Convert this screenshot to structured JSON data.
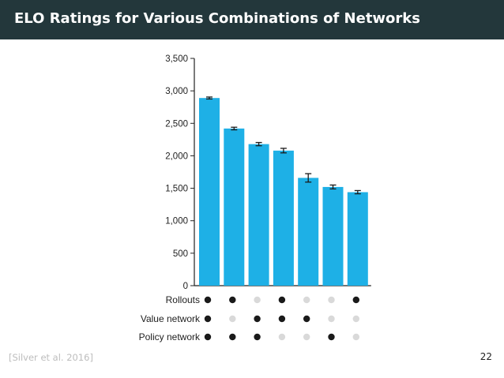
{
  "slide": {
    "title": "ELO Ratings for Various Combinations of Networks",
    "citation": "[Silver et al. 2016]",
    "page_number": "22"
  },
  "colors": {
    "header_bg": "#23373b",
    "bar": "#1eb0e6",
    "dot_on": "#1a1a1a",
    "dot_off": "#d9d9d9"
  },
  "chart_data": {
    "type": "bar",
    "title": "",
    "xlabel": "",
    "ylabel": "",
    "ylim": [
      0,
      3500
    ],
    "yticks": [
      0,
      500,
      1000,
      1500,
      2000,
      2500,
      3000,
      3500
    ],
    "ytick_labels": [
      "0",
      "500",
      "1,000",
      "1,500",
      "2,000",
      "2,500",
      "3,000",
      "3,500"
    ],
    "grid": false,
    "values": [
      2890,
      2420,
      2180,
      2080,
      1660,
      1520,
      1440
    ],
    "errors": [
      15,
      20,
      25,
      35,
      65,
      30,
      25
    ],
    "config_labels": [
      "Rollouts",
      "Value network",
      "Policy network"
    ],
    "config_matrix": [
      [
        true,
        true,
        false,
        true,
        false,
        false,
        true
      ],
      [
        true,
        false,
        true,
        true,
        true,
        false,
        false
      ],
      [
        true,
        true,
        true,
        false,
        false,
        true,
        false
      ]
    ]
  }
}
